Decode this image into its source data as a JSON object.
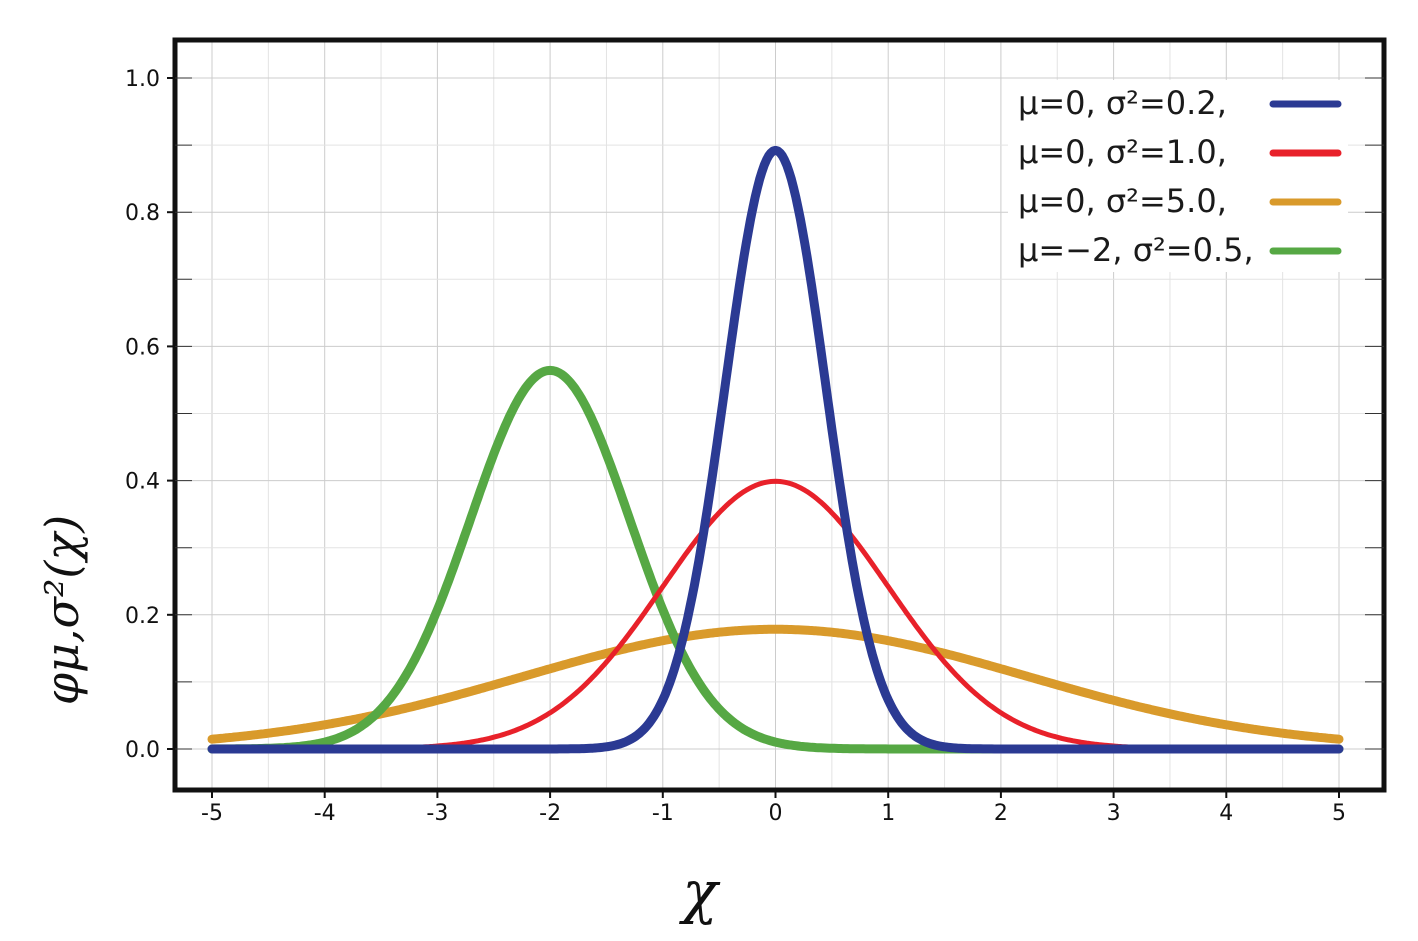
{
  "chart_data": {
    "type": "line",
    "xlabel": "χ",
    "ylabel": "φμ,σ²(χ)",
    "xlim": [
      -5,
      5
    ],
    "ylim": [
      -0.06,
      1.06
    ],
    "x_ticks": [
      "-5",
      "-4",
      "-3",
      "-2",
      "-1",
      "0",
      "1",
      "2",
      "3",
      "4",
      "5"
    ],
    "y_ticks": [
      "0.0",
      "0.2",
      "0.4",
      "0.6",
      "0.8",
      "1.0"
    ],
    "grid": true,
    "legend_position": "top-right",
    "series": [
      {
        "name": "μ=0,   σ²=0.2,",
        "mu": 0,
        "sigma2": 0.2,
        "color": "#2b3a93",
        "x": [
          -5,
          5
        ]
      },
      {
        "name": "μ=0,   σ²=1.0,",
        "mu": 0,
        "sigma2": 1.0,
        "color": "#e8212a",
        "x": [
          -5,
          4.45
        ]
      },
      {
        "name": "μ=0,   σ²=5.0,",
        "mu": 0,
        "sigma2": 5.0,
        "color": "#d99a2b",
        "x": [
          -5,
          5
        ]
      },
      {
        "name": "μ=−2, σ²=0.5,",
        "mu": -2,
        "sigma2": 0.5,
        "color": "#56a844",
        "x": [
          -5,
          5
        ]
      }
    ]
  }
}
